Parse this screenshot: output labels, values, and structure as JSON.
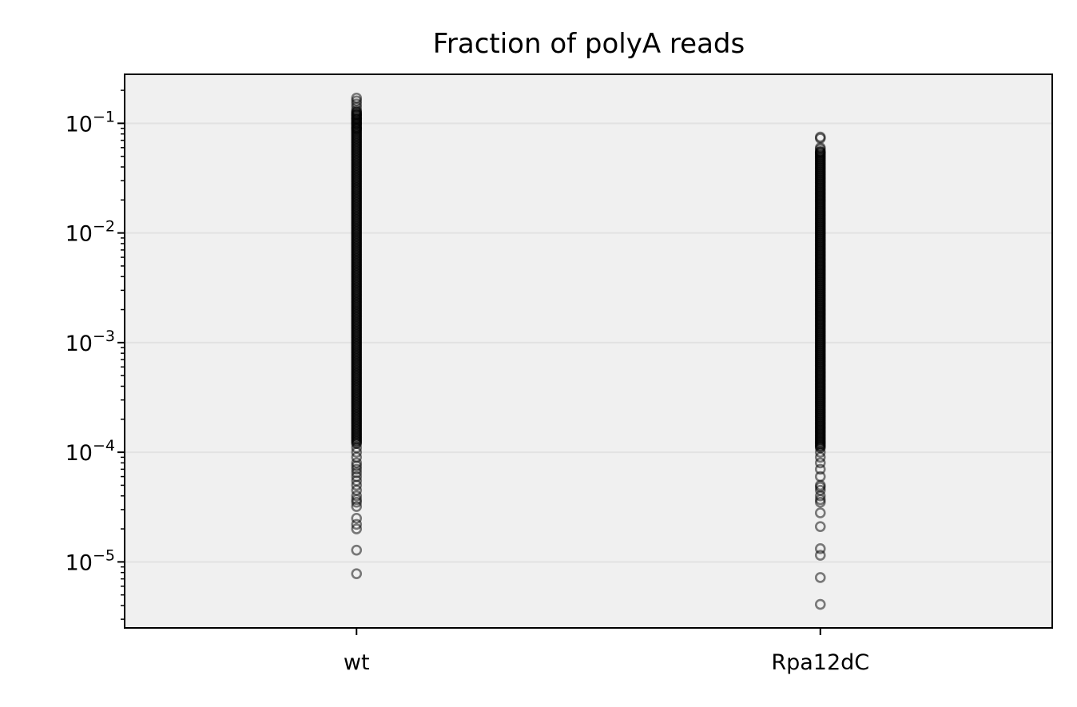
{
  "chart_data": {
    "type": "scatter",
    "title": "Fraction of polyA reads",
    "xlabel": "",
    "ylabel": "",
    "categories": [
      "wt",
      "Rpa12dC"
    ],
    "yscale": "log",
    "ylim": [
      2.5e-06,
      0.28
    ],
    "yticks": [
      {
        "value": 1e-05,
        "base": "10",
        "exp": "−5"
      },
      {
        "value": 0.0001,
        "base": "10",
        "exp": "−4"
      },
      {
        "value": 0.001,
        "base": "10",
        "exp": "−3"
      },
      {
        "value": 0.01,
        "base": "10",
        "exp": "−2"
      },
      {
        "value": 0.1,
        "base": "10",
        "exp": "−1"
      }
    ],
    "grid": "y-major",
    "marker": "open-circle",
    "marker_color": "#000000",
    "plot_background": "#f0f0f0",
    "series": [
      {
        "category": "wt",
        "dense_range": [
          0.00012,
          0.13
        ],
        "values": [
          0.17,
          0.16,
          0.15,
          0.14,
          0.12,
          0.11,
          0.1,
          0.09,
          0.00011,
          0.0001,
          9e-05,
          8e-05,
          7.5e-05,
          7e-05,
          6.5e-05,
          6e-05,
          5.5e-05,
          5e-05,
          4.5e-05,
          4e-05,
          3.7e-05,
          3.5e-05,
          3.2e-05,
          2.5e-05,
          2.2e-05,
          2e-05,
          1.28e-05,
          7.8e-06
        ]
      },
      {
        "category": "Rpa12dC",
        "dense_range": [
          0.00011,
          0.055
        ],
        "values": [
          0.075,
          0.073,
          0.06,
          0.058,
          0.055,
          0.0001,
          9e-05,
          8e-05,
          7e-05,
          6e-05,
          5e-05,
          4.8e-05,
          4.5e-05,
          4e-05,
          3.7e-05,
          3.5e-05,
          2.8e-05,
          2.1e-05,
          1.32e-05,
          1.15e-05,
          7.2e-06,
          4.1e-06
        ]
      }
    ]
  }
}
